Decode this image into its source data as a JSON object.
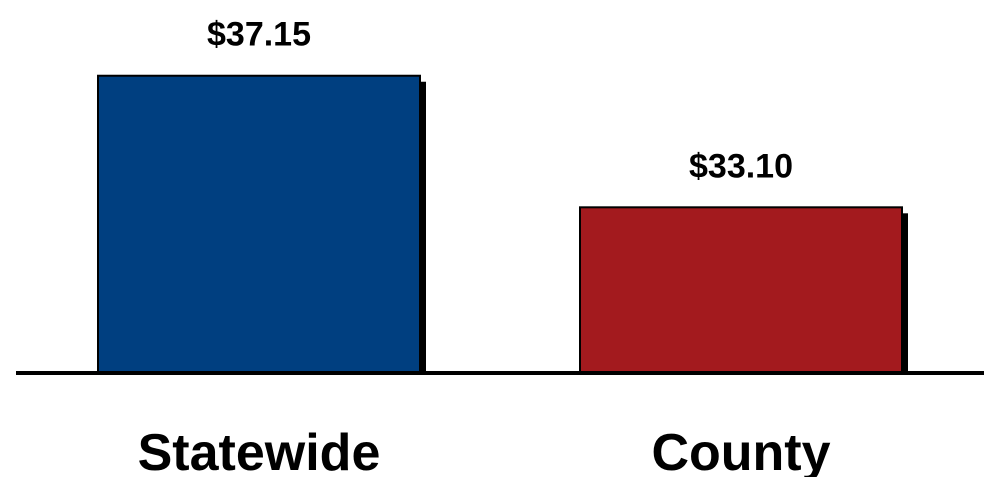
{
  "chart_data": {
    "type": "bar",
    "categories": [
      "Statewide",
      "County"
    ],
    "values": [
      37.15,
      33.1
    ],
    "value_labels": [
      "$37.15",
      "$33.10"
    ],
    "colors": [
      "#003F80",
      "#A31A1E"
    ],
    "title": "",
    "xlabel": "",
    "ylabel": "",
    "ylim": [
      28.0,
      38.25
    ],
    "grid": false,
    "legend": "none"
  }
}
